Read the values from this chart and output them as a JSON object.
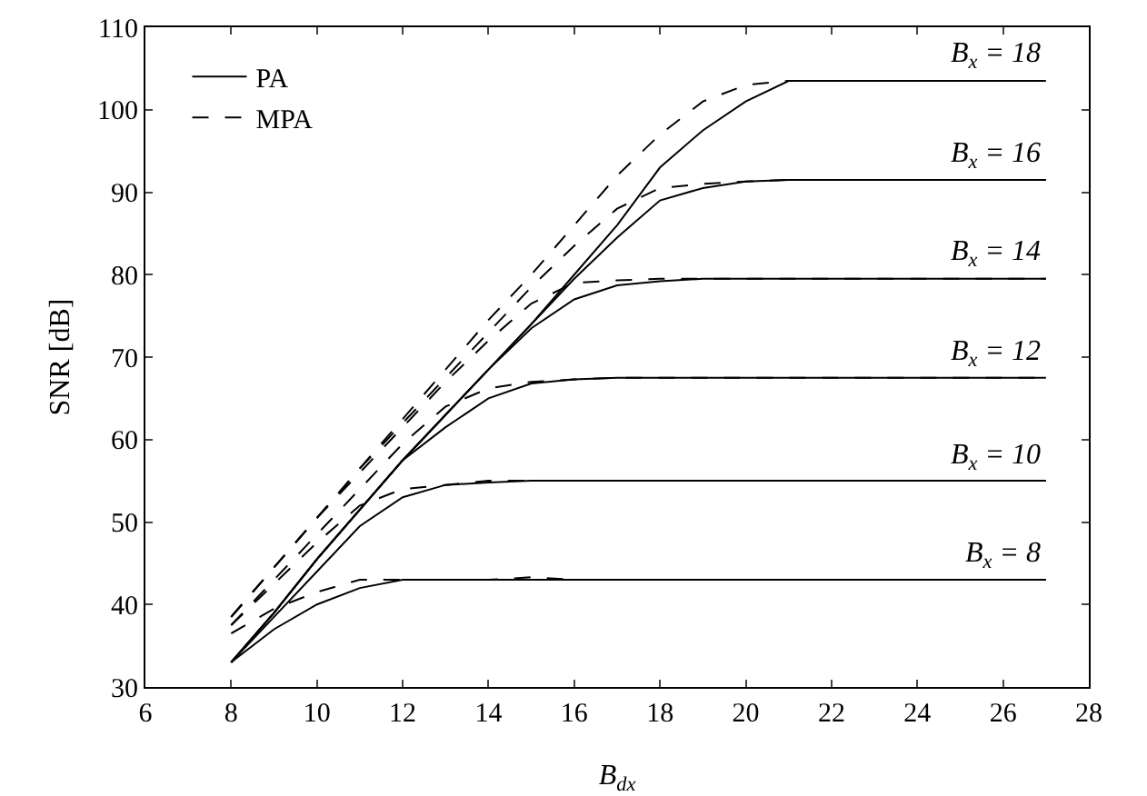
{
  "chart_data": {
    "type": "line",
    "xlabel": "B$_{dx}$",
    "ylabel": "SNR [dB]",
    "x": [
      8,
      9,
      10,
      11,
      12,
      13,
      14,
      15,
      16,
      17,
      18,
      19,
      20,
      21,
      22,
      23,
      24,
      25,
      26,
      27
    ],
    "xlim": [
      6,
      28
    ],
    "xticks": [
      6,
      8,
      10,
      12,
      14,
      16,
      18,
      20,
      22,
      24,
      26,
      28
    ],
    "ylim": [
      30,
      110
    ],
    "yticks": [
      30,
      40,
      50,
      60,
      70,
      80,
      90,
      100,
      110
    ],
    "grid": false,
    "legend": "top left",
    "marker": "none",
    "series": [
      {
        "name": "PA",
        "color": "#000000",
        "line_style": "solid",
        "values": [
          33,
          37,
          40,
          42,
          43,
          43,
          43,
          43,
          43,
          43,
          43,
          43,
          43,
          43,
          43,
          43,
          43,
          43,
          43,
          43
        ]
      },
      {
        "name": "MPA",
        "color": "#000000",
        "line_style": "dashed",
        "values": [
          36.5,
          39.5,
          41.5,
          43,
          43,
          43,
          43,
          43.3,
          43,
          43,
          43,
          43,
          43,
          43,
          43,
          43,
          43,
          43,
          43,
          43
        ]
      },
      {
        "color": "#000000",
        "line_style": "solid",
        "values": [
          33,
          38.5,
          44,
          49.5,
          53,
          54.5,
          54.8,
          55,
          55,
          55,
          55,
          55,
          55,
          55,
          55,
          55,
          55,
          55,
          55,
          55
        ]
      },
      {
        "color": "#000000",
        "line_style": "dashed",
        "values": [
          37.5,
          42.5,
          47.5,
          52,
          54,
          54.5,
          55,
          55,
          55,
          55,
          55,
          55,
          55,
          55,
          55,
          55,
          55,
          55,
          55,
          55
        ]
      },
      {
        "color": "#000000",
        "line_style": "solid",
        "values": [
          33,
          39,
          45.5,
          51.5,
          57.5,
          61.5,
          65,
          66.8,
          67.3,
          67.5,
          67.5,
          67.5,
          67.5,
          67.5,
          67.5,
          67.5,
          67.5,
          67.5,
          67.5,
          67.5
        ]
      },
      {
        "color": "#000000",
        "line_style": "dashed",
        "values": [
          37.5,
          43,
          48.5,
          54,
          59.5,
          64,
          66.2,
          67,
          67.3,
          67.5,
          67.5,
          67.5,
          67.5,
          67.5,
          67.5,
          67.5,
          67.5,
          67.5,
          67.5,
          67.5
        ]
      },
      {
        "color": "#000000",
        "line_style": "solid",
        "values": [
          33,
          39,
          45.5,
          51.5,
          57.5,
          63,
          68.5,
          73.5,
          77,
          78.7,
          79.2,
          79.5,
          79.5,
          79.5,
          79.5,
          79.5,
          79.5,
          79.5,
          79.5,
          79.5
        ]
      },
      {
        "color": "#000000",
        "line_style": "dashed",
        "values": [
          38.5,
          44.5,
          50.5,
          56,
          61.5,
          67,
          72,
          76.5,
          79,
          79.3,
          79.5,
          79.5,
          79.5,
          79.5,
          79.5,
          79.5,
          79.5,
          79.5,
          79.5,
          79.5
        ]
      },
      {
        "color": "#000000",
        "line_style": "solid",
        "values": [
          33,
          39,
          45.5,
          51.5,
          57.5,
          63,
          68.5,
          74,
          79.5,
          84.5,
          89,
          90.5,
          91.3,
          91.5,
          91.5,
          91.5,
          91.5,
          91.5,
          91.5,
          91.5
        ]
      },
      {
        "color": "#000000",
        "line_style": "dashed",
        "values": [
          38.5,
          44.5,
          50.5,
          56.5,
          62,
          67.5,
          73,
          78.5,
          83.5,
          88,
          90.5,
          91,
          91.3,
          91.5,
          91.5,
          91.5,
          91.5,
          91.5,
          91.5,
          91.5
        ]
      },
      {
        "color": "#000000",
        "line_style": "solid",
        "values": [
          33,
          39,
          45.5,
          51.5,
          57.5,
          63,
          68.5,
          74,
          80,
          86,
          93,
          97.5,
          101,
          103.5,
          103.5,
          103.5,
          103.5,
          103.5,
          103.5,
          103.5
        ]
      },
      {
        "color": "#000000",
        "line_style": "dashed",
        "values": [
          38.5,
          44.5,
          50.5,
          56.5,
          62.5,
          68.5,
          74.5,
          80,
          86,
          92,
          97,
          101,
          103,
          103.5,
          103.5,
          103.5,
          103.5,
          103.5,
          103.5,
          103.5
        ]
      }
    ],
    "annotations": [
      {
        "text": "B$_{x}$ = 18",
        "y": 103.5
      },
      {
        "text": "B$_{x}$ = 16",
        "y": 91.5
      },
      {
        "text": "B$_{x}$ = 14",
        "y": 79.5
      },
      {
        "text": "B$_{x}$ = 12",
        "y": 67.5
      },
      {
        "text": "B$_{x}$ = 10",
        "y": 55
      },
      {
        "text": "B$_{x}$ = 8",
        "y": 43
      }
    ]
  }
}
